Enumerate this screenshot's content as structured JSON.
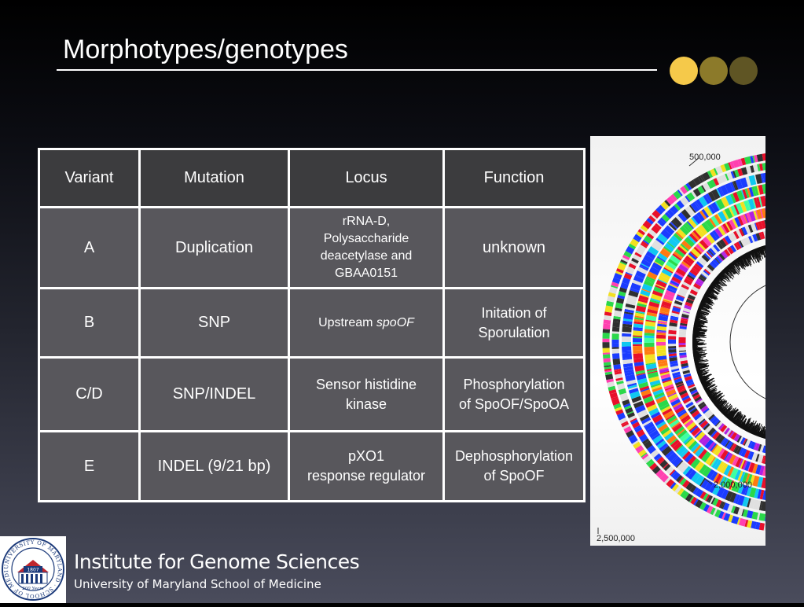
{
  "slide": {
    "title": "Morphotypes/genotypes",
    "accent_dots": [
      "#f5c94a",
      "#8c7a2a",
      "#5f5524"
    ]
  },
  "table": {
    "headers": [
      "Variant",
      "Mutation",
      "Locus",
      "Function"
    ],
    "rows": [
      {
        "variant": "A",
        "mutation": "Duplication",
        "locus_lines": [
          "rRNA-D,",
          "Polysaccharide",
          "deacetylase and",
          "GBAA0151"
        ],
        "function_lines": [
          "unknown"
        ]
      },
      {
        "variant": "B",
        "mutation": "SNP",
        "locus_prefix": "Upstream ",
        "locus_italic": "spoOF",
        "function_lines": [
          "Initation of",
          "Sporulation"
        ]
      },
      {
        "variant": "C/D",
        "mutation": "SNP/INDEL",
        "locus_lines": [
          "Sensor histidine",
          "kinase"
        ],
        "function_lines": [
          "Phosphorylation",
          "of SpoOF/SpoOA"
        ]
      },
      {
        "variant": "E",
        "mutation": "INDEL (9/21 bp)",
        "locus_lines": [
          "pXO1",
          "response regulator"
        ],
        "function_lines": [
          "Dephosphorylation",
          "of SpoOF"
        ]
      }
    ]
  },
  "genome_map": {
    "labels": [
      "500,000",
      "2,000,000",
      "2,500,000"
    ]
  },
  "footer": {
    "institute": "Institute for Genome Sciences",
    "school": "University of Maryland School of Medicine",
    "seal_year": "1807",
    "seal_tagline": "200 Years",
    "seal_ring_text": "UNIVERSITY OF MARYLAND · SCHOOL OF MEDICINE"
  }
}
